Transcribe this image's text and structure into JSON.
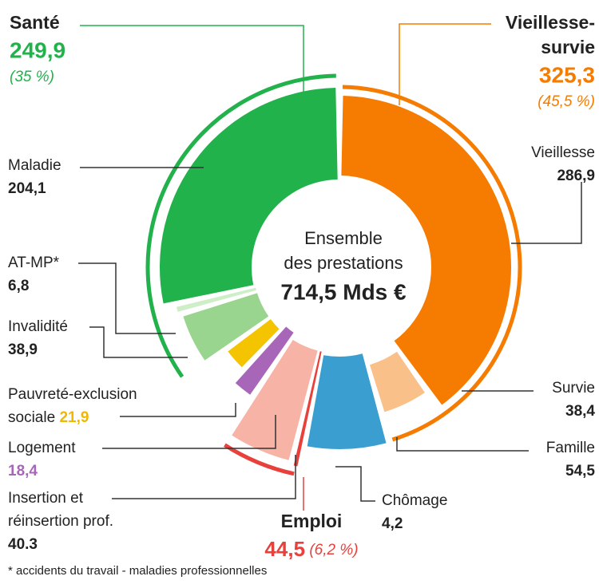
{
  "chart_data": {
    "type": "donut",
    "center_label": [
      "Ensemble",
      "des prestations"
    ],
    "total": 714.5,
    "total_label": "714,5 Mds €",
    "categories": [
      "Vieillesse",
      "Survie",
      "Famille",
      "Chômage",
      [
        "Insertion et",
        "réinsertion prof."
      ],
      "Logement",
      [
        "Pauvreté-exclusion",
        "sociale"
      ],
      "Invalidité",
      "AT-MP*",
      "Maladie"
    ],
    "values": [
      286.9,
      38.4,
      54.5,
      4.2,
      40.3,
      18.4,
      21.9,
      38.9,
      6.8,
      204.1
    ],
    "value_labels": [
      "286,9",
      "38,4",
      "54,5",
      "4,2",
      "40.3",
      "18,4",
      "21,9",
      "38,9",
      "6,8",
      "204,1"
    ],
    "colors": [
      "#f57c00",
      "#f9c08a",
      "#3a9fd0",
      "#e8413c",
      "#f7b3a5",
      "#a866b8",
      "#f5c400",
      "#9ad58f",
      "#cdeec6",
      "#22b24c"
    ],
    "groups": [
      {
        "name": [
          "Santé"
        ],
        "value": 249.9,
        "value_label": "249,9",
        "percent": 35,
        "percent_label": "(35 %)",
        "color": "#22b24c"
      },
      {
        "name": [
          "Vieillesse-",
          "survie"
        ],
        "value": 325.3,
        "value_label": "325,3",
        "percent": 45.5,
        "percent_label": "(45,5 %)",
        "color": "#f57c00"
      },
      {
        "name": [
          "Emploi"
        ],
        "value": 44.5,
        "value_label": "44,5",
        "percent": 6.2,
        "percent_label": "(6,2 %)",
        "color": "#e8413c"
      }
    ],
    "footnote": "* accidents du travail - maladies professionnelles"
  }
}
